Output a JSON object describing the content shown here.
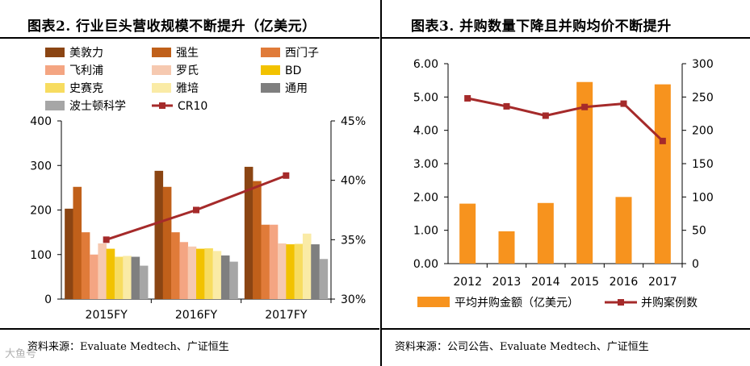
{
  "left": {
    "title": "图表2. 行业巨头营收规模不断提升（亿美元）",
    "source": "资料来源：Evaluate Medtech、广证恒生"
  },
  "right": {
    "title": "图表3. 并购数量下降且并购均价不断提升",
    "source": "资料来源：公司公告、Evaluate Medtech、广证恒生"
  },
  "watermark": "大鱼号",
  "chart_data": [
    {
      "type": "bar",
      "title": "图表2. 行业巨头营收规模不断提升（亿美元）",
      "categories": [
        "2015FY",
        "2016FY",
        "2017FY"
      ],
      "ylim": [
        0,
        400
      ],
      "yticks": [
        "0",
        "100",
        "200",
        "300",
        "400"
      ],
      "y2lim": [
        30,
        45
      ],
      "y2ticks": [
        "30%",
        "35%",
        "40%",
        "45%"
      ],
      "series": [
        {
          "name": "美敦力",
          "color": "#8B4513",
          "values": [
            203,
            288,
            297
          ]
        },
        {
          "name": "强生",
          "color": "#C0601A",
          "values": [
            252,
            252,
            265
          ]
        },
        {
          "name": "西门子",
          "color": "#E07B39",
          "values": [
            150,
            150,
            167
          ]
        },
        {
          "name": "飞利浦",
          "color": "#F4A582",
          "values": [
            100,
            128,
            167
          ]
        },
        {
          "name": "罗氏",
          "color": "#F6C9B0",
          "values": [
            125,
            118,
            125
          ]
        },
        {
          "name": "BD",
          "color": "#F2C200",
          "values": [
            113,
            113,
            123
          ]
        },
        {
          "name": "史赛克",
          "color": "#F7DC60",
          "values": [
            95,
            114,
            124
          ]
        },
        {
          "name": "雅培",
          "color": "#FAEBA6",
          "values": [
            97,
            108,
            147
          ]
        },
        {
          "name": "通用",
          "color": "#7F7F7F",
          "values": [
            95,
            98,
            123
          ]
        },
        {
          "name": "波士顿科学",
          "color": "#A6A6A6",
          "values": [
            75,
            84,
            90
          ]
        }
      ],
      "line": {
        "name": "CR10",
        "color": "#A52A2A",
        "axis": "right",
        "values": [
          35.0,
          37.5,
          40.4
        ]
      }
    },
    {
      "type": "bar",
      "title": "图表3. 并购数量下降且并购均价不断提升",
      "categories": [
        "2012",
        "2013",
        "2014",
        "2015",
        "2016",
        "2017"
      ],
      "ylim": [
        0,
        6
      ],
      "yticks": [
        "0.00",
        "1.00",
        "2.00",
        "3.00",
        "4.00",
        "5.00",
        "6.00"
      ],
      "y2lim": [
        0,
        300
      ],
      "y2ticks": [
        "0",
        "50",
        "100",
        "150",
        "200",
        "250",
        "300"
      ],
      "series": [
        {
          "name": "平均并购金额（亿美元）",
          "color": "#F7931E",
          "values": [
            1.8,
            0.97,
            1.82,
            5.45,
            2.0,
            5.38
          ]
        }
      ],
      "line": {
        "name": "并购案例数",
        "color": "#A52A2A",
        "axis": "right",
        "values": [
          248,
          236,
          222,
          235,
          240,
          184
        ]
      }
    }
  ]
}
